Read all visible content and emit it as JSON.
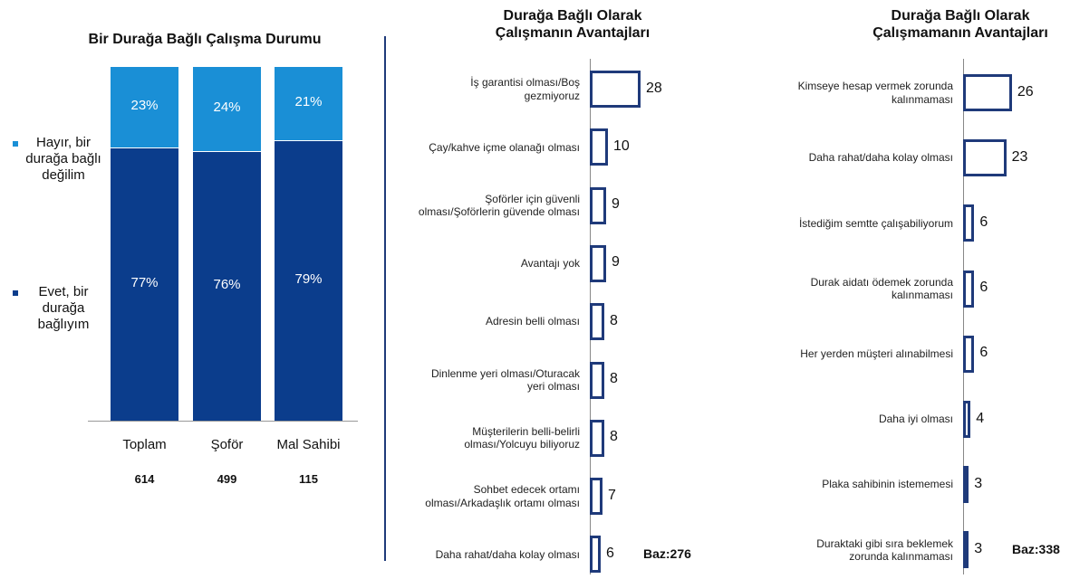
{
  "chart_data": [
    {
      "type": "stacked-bar",
      "title": "Bir Durağa Bağlı Çalışma Durumu",
      "categories": [
        "Toplam",
        "Şoför",
        "Mal Sahibi"
      ],
      "base_counts": [
        614,
        499,
        115
      ],
      "series": [
        {
          "name": "Evet, bir\ndurağa\nbağlıyım",
          "color": "#0b3d8c",
          "values": [
            77,
            76,
            79
          ],
          "value_labels": [
            "77%",
            "76%",
            "79%"
          ]
        },
        {
          "name": "Hayır, bir\ndurağa bağlı\ndeğilim",
          "color": "#1a8fd6",
          "values": [
            23,
            24,
            21
          ],
          "value_labels": [
            "23%",
            "24%",
            "21%"
          ]
        }
      ]
    },
    {
      "type": "barh",
      "title": "Durağa Bağlı Olarak\nÇalışmanın Avantajları",
      "color": "#1f3a7a",
      "categories": [
        "İş garantisi olması/Boş\ngezmiyoruz",
        "Çay/kahve içme olanağı olması",
        "Şoförler için güvenli\nolması/Şoförlerin güvende olması",
        "Avantajı yok",
        "Adresin belli olması",
        "Dinlenme yeri olması/Oturacak\nyeri olması",
        "Müşterilerin belli-belirli\nolması/Yolcuyu biliyoruz",
        "Sohbet edecek ortamı\nolması/Arkadaşlık ortamı olması",
        "Daha rahat/daha kolay olması"
      ],
      "values": [
        28,
        10,
        9,
        9,
        8,
        8,
        8,
        7,
        6
      ],
      "note": "Baz:276"
    },
    {
      "type": "barh",
      "title": "Durağa Bağlı Olarak\nÇalışmamanın Avantajları",
      "color": "#1f3a7a",
      "categories": [
        "Kimseye hesap vermek zorunda\nkalınmaması",
        "Daha rahat/daha kolay olması",
        "İstediğim semtte çalışabiliyorum",
        "Durak aidatı ödemek zorunda\nkalınmaması",
        "Her yerden müşteri alınabilmesi",
        "Daha iyi olması",
        "Plaka sahibinin istememesi",
        "Duraktaki gibi sıra beklemek\nzorunda kalınmaması"
      ],
      "values": [
        26,
        23,
        6,
        6,
        6,
        4,
        3,
        3
      ],
      "note": "Baz:338"
    }
  ]
}
